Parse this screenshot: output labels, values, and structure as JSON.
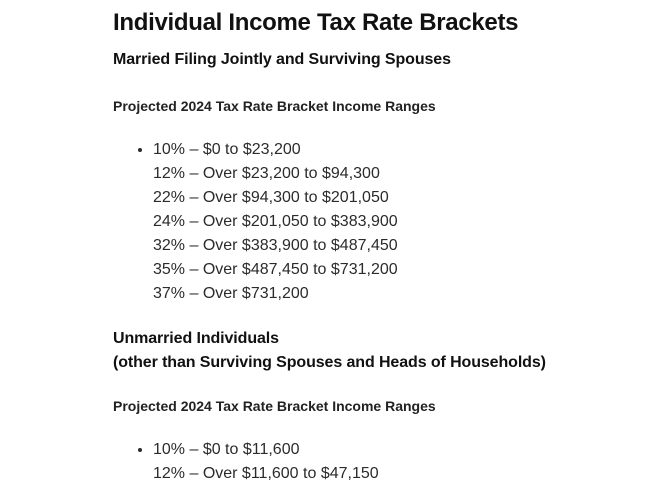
{
  "document": {
    "title": "Individual Income Tax Rate Brackets",
    "colors": {
      "background": "#ffffff",
      "heading_text": "#111111",
      "body_text": "#2b2b2b"
    },
    "sections": [
      {
        "heading_lines": [
          "Married Filing Jointly and Surviving Spouses"
        ],
        "subheading": "Projected 2024 Tax Rate Bracket Income Ranges",
        "bracket_lines": [
          "10% – $0 to $23,200",
          "12% – Over $23,200 to $94,300",
          "22% – Over $94,300 to $201,050",
          "24% – Over $201,050 to $383,900",
          "32% – Over $383,900 to $487,450",
          "35% – Over $487,450 to $731,200",
          "37% – Over $731,200"
        ]
      },
      {
        "heading_lines": [
          "Unmarried Individuals",
          "(other than Surviving Spouses and Heads of Households)"
        ],
        "subheading": "Projected 2024 Tax Rate Bracket Income Ranges",
        "bracket_lines": [
          "10% – $0 to $11,600",
          "12% – Over $11,600 to $47,150"
        ]
      }
    ]
  }
}
